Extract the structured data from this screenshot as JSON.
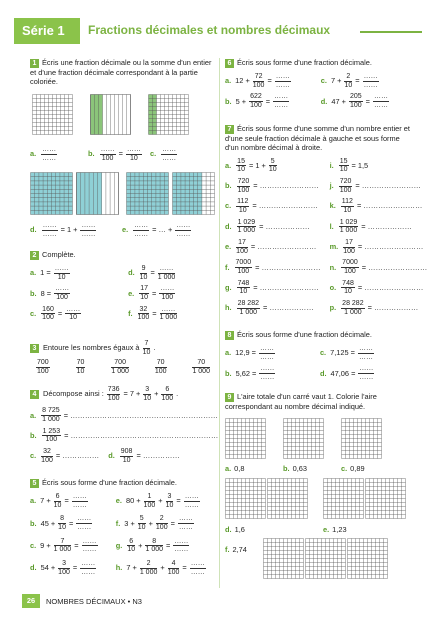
{
  "header": {
    "series": "Série 1",
    "title": "Fractions décimales et nombres décimaux"
  },
  "footer": {
    "page": "26",
    "text": "NOMBRES DÉCIMAUX • N3"
  },
  "ex1": {
    "number": "1",
    "instruction": "Écris une fraction décimale ou la somme d'un entier et d'une fraction décimale correspondant à la partie coloriée.",
    "items": [
      {
        "label": "a.",
        "expr": [
          {
            "num": "……",
            "den": "……"
          }
        ]
      },
      {
        "label": "b.",
        "expr": [
          {
            "num": "……",
            "den": "100"
          },
          "=",
          {
            "num": "……",
            "den": "10"
          }
        ]
      },
      {
        "label": "c.",
        "expr": [
          {
            "num": "……",
            "den": "……"
          }
        ]
      },
      {
        "label": "d.",
        "expr": [
          {
            "num": "……",
            "den": "……"
          },
          "= 1 +",
          {
            "num": "……",
            "den": "……"
          }
        ]
      },
      {
        "label": "e.",
        "expr": [
          {
            "num": "……",
            "den": "……"
          },
          "= … +",
          {
            "num": "……",
            "den": "……"
          }
        ]
      }
    ]
  },
  "ex2": {
    "number": "2",
    "instruction": "Complète.",
    "items": [
      {
        "label": "a.",
        "expr": [
          "1 =",
          {
            "num": "……",
            "den": "10"
          }
        ]
      },
      {
        "label": "b.",
        "expr": [
          "8 =",
          {
            "num": "……",
            "den": "100"
          }
        ]
      },
      {
        "label": "c.",
        "expr": [
          {
            "num": "160",
            "den": "100"
          },
          "=",
          {
            "num": "……",
            "den": "10"
          }
        ]
      },
      {
        "label": "d.",
        "expr": [
          {
            "num": "9",
            "den": "10"
          },
          "=",
          {
            "num": "……",
            "den": "1 000"
          }
        ]
      },
      {
        "label": "e.",
        "expr": [
          {
            "num": "17",
            "den": "10"
          },
          "=",
          {
            "num": "……",
            "den": "100"
          }
        ]
      },
      {
        "label": "f.",
        "expr": [
          {
            "num": "32",
            "den": "100"
          },
          "=",
          {
            "num": "……",
            "den": "1 000"
          }
        ]
      }
    ]
  },
  "ex3": {
    "number": "3",
    "instruction": [
      "Entoure les nombres égaux à",
      {
        "num": "7",
        "den": "10"
      },
      "."
    ],
    "options": [
      {
        "num": "700",
        "den": "100"
      },
      {
        "num": "70",
        "den": "10"
      },
      {
        "num": "700",
        "den": "1 000"
      },
      {
        "num": "70",
        "den": "100"
      },
      {
        "num": "70",
        "den": "1 000"
      }
    ]
  },
  "ex4": {
    "number": "4",
    "instruction": [
      "Décompose ainsi :",
      {
        "num": "736",
        "den": "100"
      },
      "= 7 +",
      {
        "num": "3",
        "den": "10"
      },
      "+",
      {
        "num": "6",
        "den": "100"
      },
      "."
    ],
    "items": [
      {
        "label": "a.",
        "expr": [
          {
            "num": "8 725",
            "den": "1 000"
          },
          "= ……………………………………………………"
        ]
      },
      {
        "label": "b.",
        "expr": [
          {
            "num": "1 253",
            "den": "100"
          },
          "= ……………………………………………………"
        ]
      },
      {
        "label": "c.",
        "expr": [
          {
            "num": "32",
            "den": "100"
          },
          "= ……………"
        ]
      },
      {
        "label": "d.",
        "expr": [
          {
            "num": "908",
            "den": "10"
          },
          "= ……………"
        ]
      }
    ]
  },
  "ex5": {
    "number": "5",
    "instruction": "Écris sous forme d'une fraction décimale.",
    "items": [
      {
        "label": "a.",
        "expr": [
          "7 +",
          {
            "num": "6",
            "den": "10"
          },
          "=",
          {
            "num": "……",
            "den": "……"
          }
        ]
      },
      {
        "label": "b.",
        "expr": [
          "45 +",
          {
            "num": "8",
            "den": "10"
          },
          "=",
          {
            "num": "……",
            "den": "……"
          }
        ]
      },
      {
        "label": "c.",
        "expr": [
          "9 +",
          {
            "num": "7",
            "den": "1 000"
          },
          "=",
          {
            "num": "……",
            "den": "……"
          }
        ]
      },
      {
        "label": "d.",
        "expr": [
          "54 +",
          {
            "num": "3",
            "den": "100"
          },
          "=",
          {
            "num": "……",
            "den": "……"
          }
        ]
      },
      {
        "label": "e.",
        "expr": [
          "80 +",
          {
            "num": "1",
            "den": "100"
          },
          "+",
          {
            "num": "3",
            "den": "10"
          },
          "=",
          {
            "num": "……",
            "den": "……"
          }
        ]
      },
      {
        "label": "f.",
        "expr": [
          "3 +",
          {
            "num": "5",
            "den": "10"
          },
          "+",
          {
            "num": "2",
            "den": "100"
          },
          "=",
          {
            "num": "……",
            "den": "……"
          }
        ]
      },
      {
        "label": "g.",
        "expr": [
          {
            "num": "6",
            "den": "10"
          },
          "+",
          {
            "num": "8",
            "den": "1 000"
          },
          "=",
          {
            "num": "……",
            "den": "……"
          }
        ]
      },
      {
        "label": "h.",
        "expr": [
          "7 +",
          {
            "num": "2",
            "den": "1 000"
          },
          "+",
          {
            "num": "4",
            "den": "100"
          },
          "=",
          {
            "num": "……",
            "den": "……"
          }
        ]
      }
    ]
  },
  "ex6": {
    "number": "6",
    "instruction": "Écris sous forme d'une fraction décimale.",
    "items": [
      {
        "label": "a.",
        "expr": [
          "12 +",
          {
            "num": "72",
            "den": "100"
          },
          "=",
          {
            "num": "……",
            "den": "……"
          }
        ]
      },
      {
        "label": "b.",
        "expr": [
          "5 +",
          {
            "num": "622",
            "den": "100"
          },
          "=",
          {
            "num": "……",
            "den": "……"
          }
        ]
      },
      {
        "label": "c.",
        "expr": [
          "7 +",
          {
            "num": "2",
            "den": "10"
          },
          "=",
          {
            "num": "……",
            "den": "……"
          }
        ]
      },
      {
        "label": "d.",
        "expr": [
          "47 +",
          {
            "num": "205",
            "den": "100"
          },
          "=",
          {
            "num": "……",
            "den": "……"
          }
        ]
      }
    ]
  },
  "ex7": {
    "number": "7",
    "instruction": "Écris sous forme d'une somme d'un nombre entier et d'une seule fraction décimale à gauche et sous forme d'un nombre décimal à droite.",
    "items": [
      {
        "label": "a.",
        "expr": [
          {
            "num": "15",
            "den": "10"
          },
          "= 1 +",
          {
            "num": "5",
            "den": "10"
          }
        ]
      },
      {
        "label": "b.",
        "expr": [
          {
            "num": "720",
            "den": "100"
          },
          "= ……………………"
        ]
      },
      {
        "label": "c.",
        "expr": [
          {
            "num": "112",
            "den": "10"
          },
          "= ……………………"
        ]
      },
      {
        "label": "d.",
        "expr": [
          {
            "num": "1 029",
            "den": "1 000"
          },
          "= ………………"
        ]
      },
      {
        "label": "e.",
        "expr": [
          {
            "num": "17",
            "den": "100"
          },
          "= ……………………"
        ]
      },
      {
        "label": "f.",
        "expr": [
          {
            "num": "7000",
            "den": "100"
          },
          "= ……………………"
        ]
      },
      {
        "label": "g.",
        "expr": [
          {
            "num": "748",
            "den": "10"
          },
          "= ……………………"
        ]
      },
      {
        "label": "h.",
        "expr": [
          {
            "num": "28 282",
            "den": "1 000"
          },
          "= ………………"
        ]
      },
      {
        "label": "i.",
        "expr": [
          {
            "num": "15",
            "den": "10"
          },
          "= 1,5"
        ]
      },
      {
        "label": "j.",
        "expr": [
          {
            "num": "720",
            "den": "100"
          },
          "= ……………………"
        ]
      },
      {
        "label": "k.",
        "expr": [
          {
            "num": "112",
            "den": "10"
          },
          "= ……………………"
        ]
      },
      {
        "label": "l.",
        "expr": [
          {
            "num": "1 029",
            "den": "1 000"
          },
          "= ………………"
        ]
      },
      {
        "label": "m.",
        "expr": [
          {
            "num": "17",
            "den": "100"
          },
          "= ……………………"
        ]
      },
      {
        "label": "n.",
        "expr": [
          {
            "num": "7000",
            "den": "100"
          },
          "= ……………………"
        ]
      },
      {
        "label": "o.",
        "expr": [
          {
            "num": "748",
            "den": "10"
          },
          "= ……………………"
        ]
      },
      {
        "label": "p.",
        "expr": [
          {
            "num": "28 282",
            "den": "1 000"
          },
          "= ………………"
        ]
      }
    ]
  },
  "ex8": {
    "number": "8",
    "instruction": "Écris sous forme d'une fraction décimale.",
    "items": [
      {
        "label": "a.",
        "expr": [
          "12,9 =",
          {
            "num": "……",
            "den": "……"
          }
        ]
      },
      {
        "label": "b.",
        "expr": [
          "5,62 =",
          {
            "num": "……",
            "den": "……"
          }
        ]
      },
      {
        "label": "c.",
        "expr": [
          "7,125 =",
          {
            "num": "……",
            "den": "……"
          }
        ]
      },
      {
        "label": "d.",
        "expr": [
          "47,06 =",
          {
            "num": "……",
            "den": "……"
          }
        ]
      }
    ]
  },
  "ex9": {
    "number": "9",
    "instruction": "L'aire totale d'un carré vaut 1. Colorie l'aire correspondant au nombre décimal indiqué.",
    "items": [
      {
        "label": "a.",
        "value": "0,8"
      },
      {
        "label": "b.",
        "value": "0,63"
      },
      {
        "label": "c.",
        "value": "0,89"
      },
      {
        "label": "d.",
        "value": "1,6"
      },
      {
        "label": "e.",
        "value": "1,23"
      },
      {
        "label": "f.",
        "value": "2,74"
      }
    ]
  }
}
